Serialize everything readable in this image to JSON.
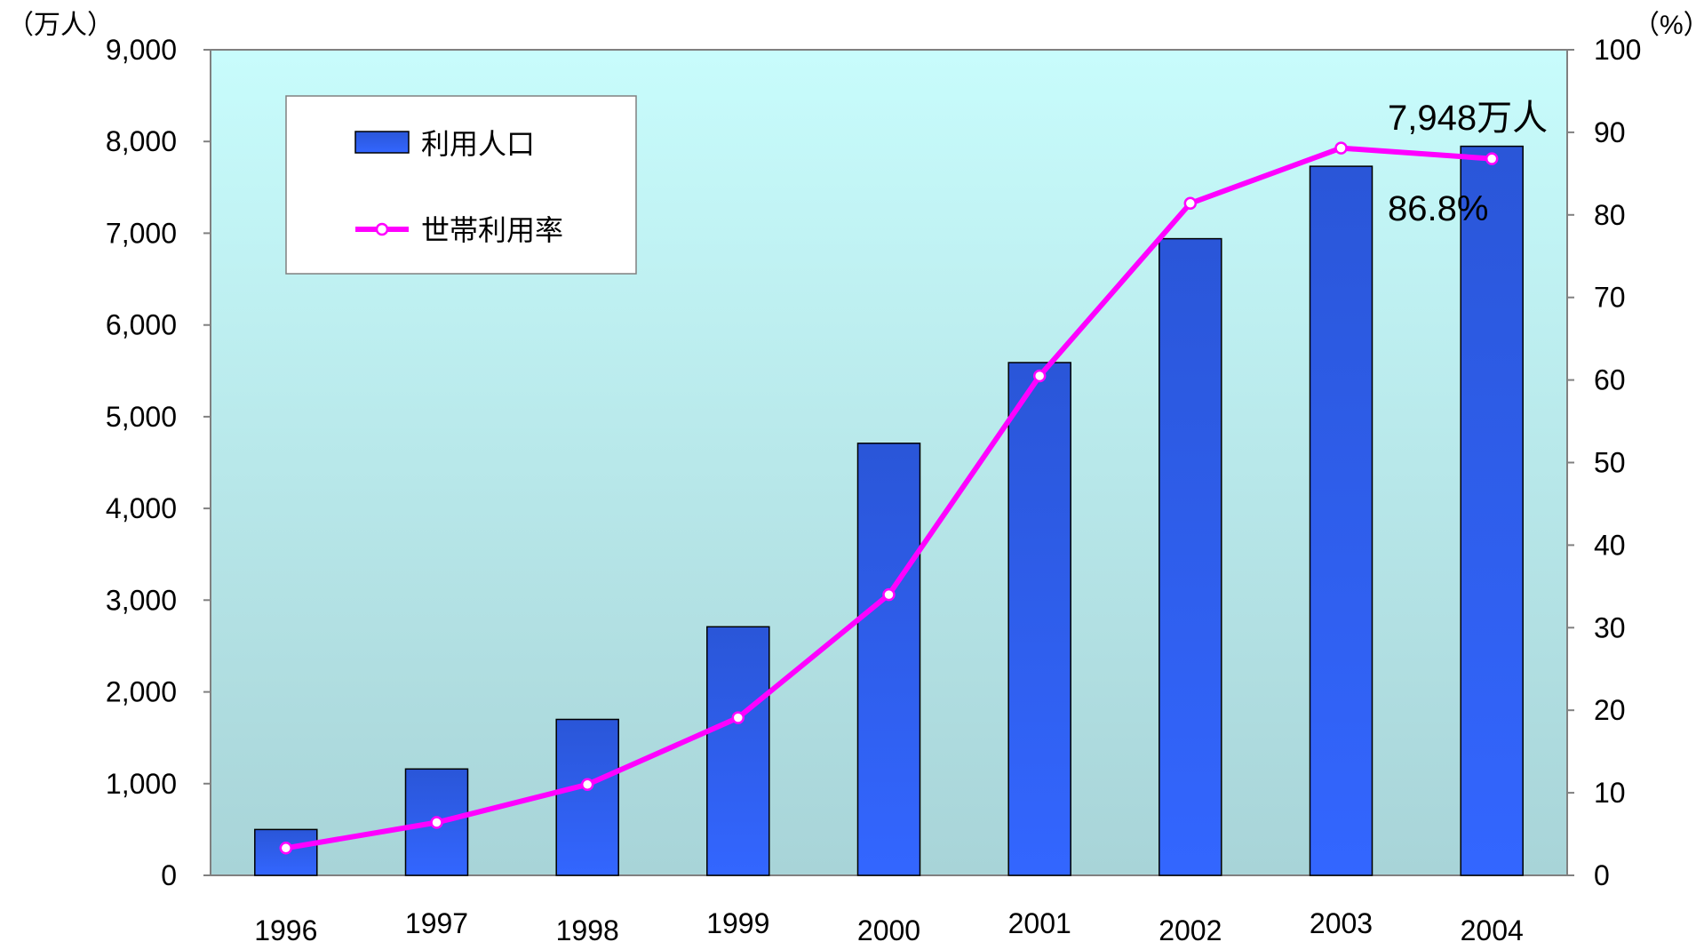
{
  "chart_data": {
    "type": "bar",
    "title": "",
    "categories": [
      "1996",
      "1997",
      "1998",
      "1999",
      "2000",
      "2001",
      "2002",
      "2003",
      "2004"
    ],
    "series": [
      {
        "name": "利用人口",
        "type": "bar",
        "axis": "left",
        "values": [
          500,
          1160,
          1700,
          2710,
          4710,
          5590,
          6940,
          7730,
          7948
        ],
        "color": "#2F5FF0"
      },
      {
        "name": "世帯利用率",
        "type": "line",
        "axis": "right",
        "values": [
          3.3,
          6.4,
          11.0,
          19.1,
          34.0,
          60.5,
          81.4,
          88.1,
          86.8
        ],
        "color": "#FF00FF"
      }
    ],
    "y_left": {
      "unit": "（万人）",
      "ylim": [
        0,
        9000
      ],
      "ticks": [
        "0",
        "1,000",
        "2,000",
        "3,000",
        "4,000",
        "5,000",
        "6,000",
        "7,000",
        "8,000",
        "9,000"
      ]
    },
    "y_right": {
      "unit": "（%）",
      "ylim": [
        0,
        100
      ],
      "ticks": [
        "0",
        "10",
        "20",
        "30",
        "40",
        "50",
        "60",
        "70",
        "80",
        "90",
        "100"
      ]
    },
    "annotations": {
      "population": "7,948万人",
      "rate": "86.8%"
    },
    "legend": {
      "position": "top-left",
      "items": [
        "利用人口",
        "世帯利用率"
      ]
    },
    "grid": false,
    "background": {
      "top": "#C8FCFC",
      "bottom": "#A8D4D8"
    }
  }
}
